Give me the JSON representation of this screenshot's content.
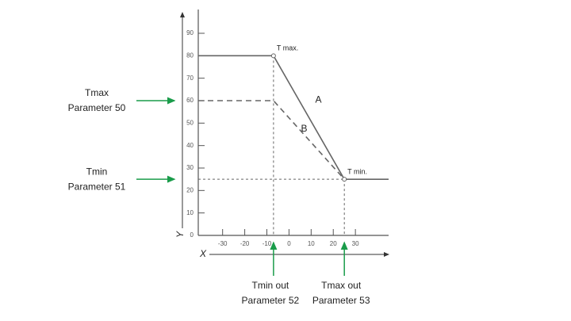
{
  "chart_data": {
    "type": "line",
    "x_label": "X",
    "y_label": "Y",
    "xlim": [
      -41,
      45
    ],
    "ylim": [
      0,
      90
    ],
    "xticks": [
      -30,
      -20,
      -10,
      0,
      10,
      20,
      30
    ],
    "yticks": [
      0,
      10,
      20,
      30,
      40,
      50,
      60,
      70,
      80,
      90
    ],
    "series": [
      {
        "name": "A",
        "color": "#666666",
        "dash": false,
        "x": [
          -41,
          -7,
          25,
          45
        ],
        "values": [
          80,
          80,
          25,
          25
        ]
      },
      {
        "name": "B",
        "color": "#666666",
        "dash": true,
        "x": [
          -41,
          -7,
          25
        ],
        "values": [
          60,
          60,
          25
        ]
      }
    ],
    "point_labels": [
      {
        "text": "T max.",
        "x": -7,
        "y": 80
      },
      {
        "text": "T min.",
        "x": 25,
        "y": 25
      }
    ],
    "side_labels": [
      {
        "lines": [
          "Tmax",
          "Parameter 50"
        ],
        "y": 60
      },
      {
        "lines": [
          "Tmin",
          "Parameter 51"
        ],
        "y": 25
      }
    ],
    "bottom_labels": [
      {
        "lines": [
          "Tmin out",
          "Parameter 52"
        ],
        "x": -7
      },
      {
        "lines": [
          "Tmax out",
          "Parameter 53"
        ],
        "x": 25
      }
    ]
  }
}
